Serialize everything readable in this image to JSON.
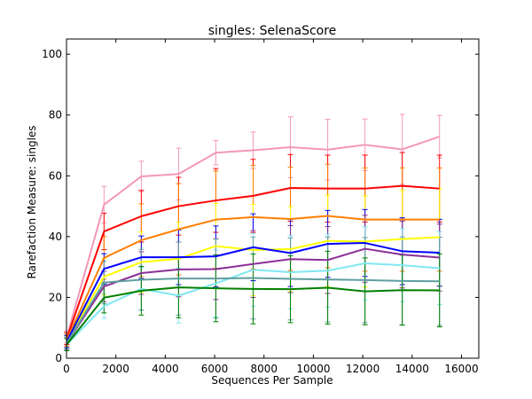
{
  "chart_data": {
    "type": "line",
    "title": "singles: SelenaScore",
    "xlabel": "Sequences Per Sample",
    "ylabel": "Rarefaction Measure: singles",
    "xlim": [
      0,
      16700
    ],
    "ylim": [
      0,
      105
    ],
    "x_ticks": [
      0,
      2000,
      4000,
      6000,
      8000,
      10000,
      12000,
      14000,
      16000
    ],
    "y_ticks": [
      0,
      20,
      40,
      60,
      80,
      100
    ],
    "grid": false,
    "legend": "none",
    "x": [
      10,
      1520,
      3030,
      4540,
      6050,
      7560,
      9070,
      10580,
      12090,
      13600,
      15110
    ],
    "series": [
      {
        "color": "#f497b8",
        "values": [
          7.0,
          50.5,
          59.8,
          60.6,
          67.6,
          68.4,
          69.4,
          68.6,
          70.2,
          68.7,
          72.9
        ],
        "errors": [
          2.0,
          6.0,
          5.0,
          8.5,
          4.0,
          6.0,
          10.0,
          10.0,
          8.5,
          11.5,
          7.0
        ]
      },
      {
        "color": "#ff0000",
        "values": [
          6.5,
          41.7,
          46.7,
          50.0,
          51.9,
          53.4,
          56.0,
          55.8,
          55.8,
          56.7,
          55.8
        ],
        "errors": [
          2.0,
          6.0,
          8.5,
          9.5,
          10.5,
          12.0,
          11.0,
          11.0,
          11.0,
          11.0,
          11.0
        ]
      },
      {
        "color": "#ff7f00",
        "values": [
          6.0,
          33.0,
          38.8,
          42.4,
          45.6,
          46.4,
          45.8,
          46.8,
          45.6,
          45.6,
          45.6
        ],
        "errors": [
          2.0,
          7.0,
          12.0,
          15.0,
          16.0,
          17.0,
          17.0,
          17.0,
          17.0,
          17.0,
          17.0
        ]
      },
      {
        "color": "#ffff00",
        "values": [
          5.5,
          26.8,
          31.6,
          32.7,
          36.9,
          35.6,
          35.9,
          38.6,
          38.4,
          39.2,
          39.8
        ],
        "errors": [
          2.0,
          6.0,
          10.0,
          12.0,
          14.0,
          15.0,
          14.0,
          15.0,
          15.0,
          16.0,
          16.0
        ]
      },
      {
        "color": "#0000ff",
        "values": [
          5.5,
          29.4,
          33.2,
          33.2,
          33.5,
          36.5,
          34.6,
          37.6,
          37.9,
          35.2,
          34.7
        ],
        "errors": [
          2.0,
          5.0,
          7.0,
          9.0,
          10.0,
          11.0,
          11.0,
          11.0,
          11.0,
          11.0,
          11.0
        ]
      },
      {
        "color": "#8b2f97",
        "values": [
          5.0,
          23.6,
          28.0,
          29.2,
          29.3,
          31.0,
          32.6,
          32.3,
          36.0,
          34.1,
          33.1
        ],
        "errors": [
          2.0,
          5.0,
          7.0,
          9.0,
          10.0,
          11.0,
          11.0,
          11.0,
          11.0,
          11.0,
          11.0
        ]
      },
      {
        "color": "#7fe8f0",
        "values": [
          4.5,
          17.1,
          22.8,
          20.6,
          24.6,
          29.1,
          28.3,
          28.8,
          31.2,
          30.6,
          29.6
        ],
        "errors": [
          2.0,
          4.0,
          7.0,
          9.0,
          11.0,
          12.0,
          12.0,
          12.0,
          12.0,
          12.0,
          12.0
        ]
      },
      {
        "color": "#5f9ea0",
        "values": [
          5.0,
          24.9,
          25.8,
          26.2,
          26.2,
          26.4,
          26.1,
          25.9,
          25.7,
          25.4,
          25.3
        ],
        "errors": [
          2.0,
          7.0,
          10.0,
          12.0,
          13.0,
          13.5,
          13.5,
          14.0,
          14.0,
          14.5,
          14.5
        ]
      },
      {
        "color": "#008000",
        "values": [
          4.5,
          19.9,
          22.2,
          23.3,
          23.0,
          22.8,
          22.7,
          23.2,
          22.0,
          22.4,
          22.3
        ],
        "errors": [
          2.0,
          5.0,
          8.0,
          10.0,
          11.0,
          11.5,
          11.0,
          12.0,
          11.0,
          11.5,
          12.0
        ]
      }
    ]
  }
}
